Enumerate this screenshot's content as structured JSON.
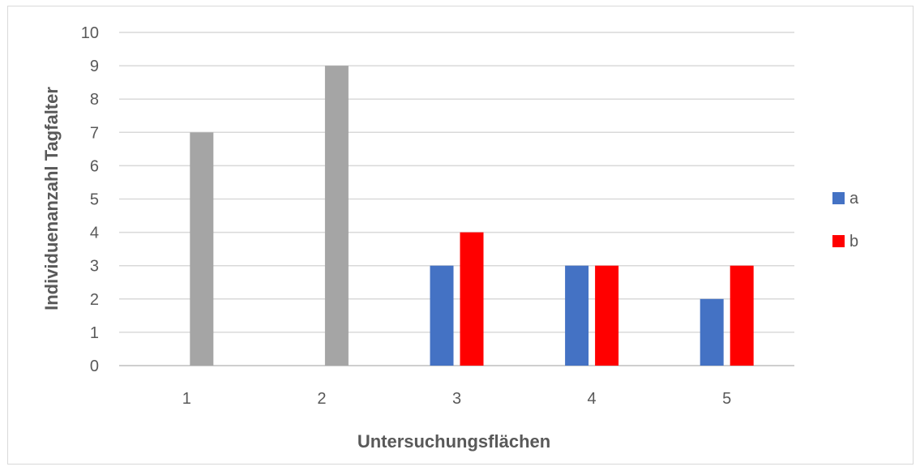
{
  "chart_data": {
    "type": "bar",
    "categories": [
      "1",
      "2",
      "3",
      "4",
      "5"
    ],
    "series": [
      {
        "name": "a",
        "color": "#4472c4",
        "values": [
          null,
          null,
          3,
          3,
          2
        ]
      },
      {
        "name": "b",
        "color": "#ff0000",
        "values": [
          7,
          9,
          4,
          3,
          3
        ],
        "point_colors": [
          "#a5a5a5",
          "#a5a5a5",
          "#ff0000",
          "#ff0000",
          "#ff0000"
        ]
      }
    ],
    "title": "",
    "xlabel": "Untersuchungsflächen",
    "ylabel": "Individuenanzahl Tagfalter",
    "ylim": [
      0,
      10
    ],
    "yticks": [
      "0",
      "1",
      "2",
      "3",
      "4",
      "5",
      "6",
      "7",
      "8",
      "9",
      "10"
    ],
    "grid": true,
    "legend_position": "right"
  }
}
